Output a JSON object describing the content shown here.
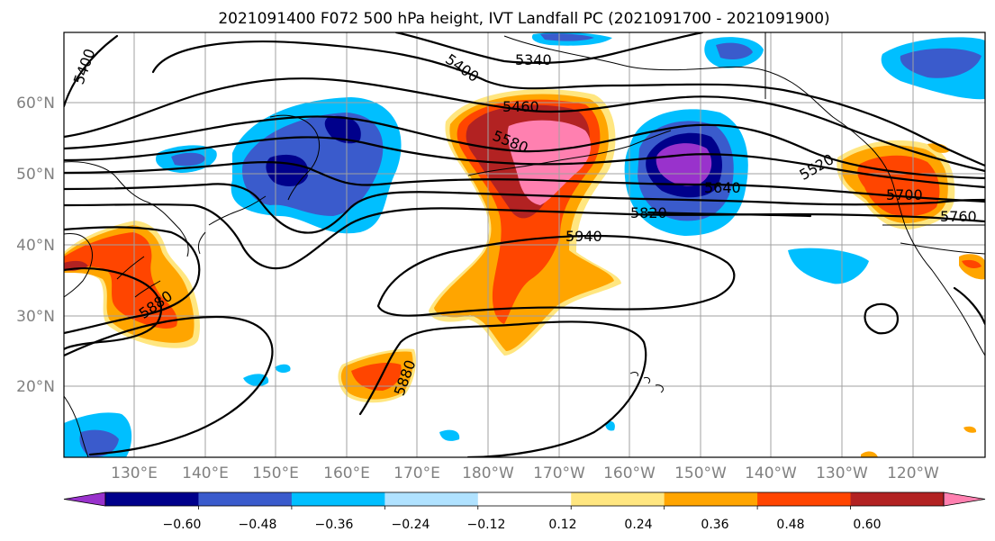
{
  "title": "2021091400 F072 500 hPa height, IVT Landfall PC (2021091700 - 2021091900)",
  "lon_labels": [
    "130°E",
    "140°E",
    "150°E",
    "160°E",
    "170°E",
    "180°W",
    "170°W",
    "160°W",
    "150°W",
    "140°W",
    "130°W",
    "120°W"
  ],
  "lat_labels": [
    "60°N",
    "50°N",
    "40°N",
    "30°N",
    "20°N"
  ],
  "colorbar": {
    "tick_labels": [
      "−0.60",
      "−0.48",
      "−0.36",
      "−0.24",
      "−0.12",
      "0.12",
      "0.24",
      "0.36",
      "0.48",
      "0.60"
    ],
    "colors": [
      "#9932cc",
      "#00008b",
      "#3a5bcc",
      "#00bfff",
      "#b0e2ff",
      "#ffffff",
      "#ffe680",
      "#ffa500",
      "#ff4500",
      "#b22222",
      "#ff80b0"
    ],
    "extend": "both"
  },
  "contours": {
    "line_color": "#000000",
    "labels": [
      "5400",
      "5400",
      "5340",
      "5460",
      "5580",
      "5520",
      "5640",
      "5700",
      "5760",
      "5820",
      "5940",
      "5880",
      "5880",
      "588"
    ]
  }
}
